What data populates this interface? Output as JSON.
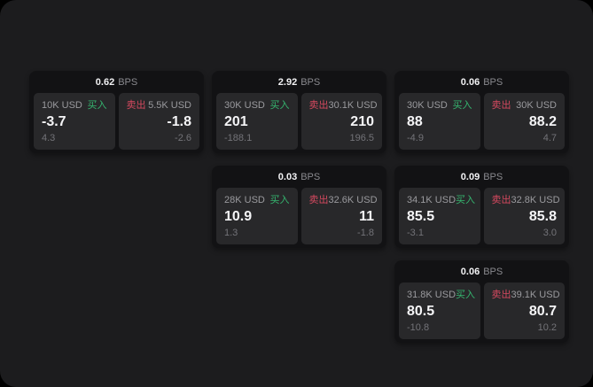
{
  "labels": {
    "bps_unit": "BPS",
    "buy": "买入",
    "sell": "卖出"
  },
  "colors": {
    "buy_green": "#35b56f",
    "sell_red": "#d5495f",
    "panel_bg": "#1c1c1e",
    "card_bg": "#121214",
    "tile_bg": "#28282a"
  },
  "cards": [
    {
      "row": 1,
      "col": 1,
      "bps": "0.62",
      "buy": {
        "amount": "10K USD",
        "price": "-3.7",
        "delta": "4.3"
      },
      "sell": {
        "amount": "5.5K USD",
        "price": "-1.8",
        "delta": "-2.6"
      }
    },
    {
      "row": 1,
      "col": 2,
      "bps": "2.92",
      "buy": {
        "amount": "30K USD",
        "price": "201",
        "delta": "-188.1"
      },
      "sell": {
        "amount": "30.1K USD",
        "price": "210",
        "delta": "196.5"
      }
    },
    {
      "row": 1,
      "col": 3,
      "bps": "0.06",
      "buy": {
        "amount": "30K USD",
        "price": "88",
        "delta": "-4.9"
      },
      "sell": {
        "amount": "30K USD",
        "price": "88.2",
        "delta": "4.7"
      }
    },
    {
      "row": 2,
      "col": 2,
      "bps": "0.03",
      "buy": {
        "amount": "28K USD",
        "price": "10.9",
        "delta": "1.3"
      },
      "sell": {
        "amount": "32.6K USD",
        "price": "11",
        "delta": "-1.8"
      }
    },
    {
      "row": 2,
      "col": 3,
      "bps": "0.09",
      "buy": {
        "amount": "34.1K USD",
        "price": "85.5",
        "delta": "-3.1"
      },
      "sell": {
        "amount": "32.8K USD",
        "price": "85.8",
        "delta": "3.0"
      }
    },
    {
      "row": 3,
      "col": 3,
      "bps": "0.06",
      "buy": {
        "amount": "31.8K USD",
        "price": "80.5",
        "delta": "-10.8"
      },
      "sell": {
        "amount": "39.1K USD",
        "price": "80.7",
        "delta": "10.2"
      }
    }
  ]
}
